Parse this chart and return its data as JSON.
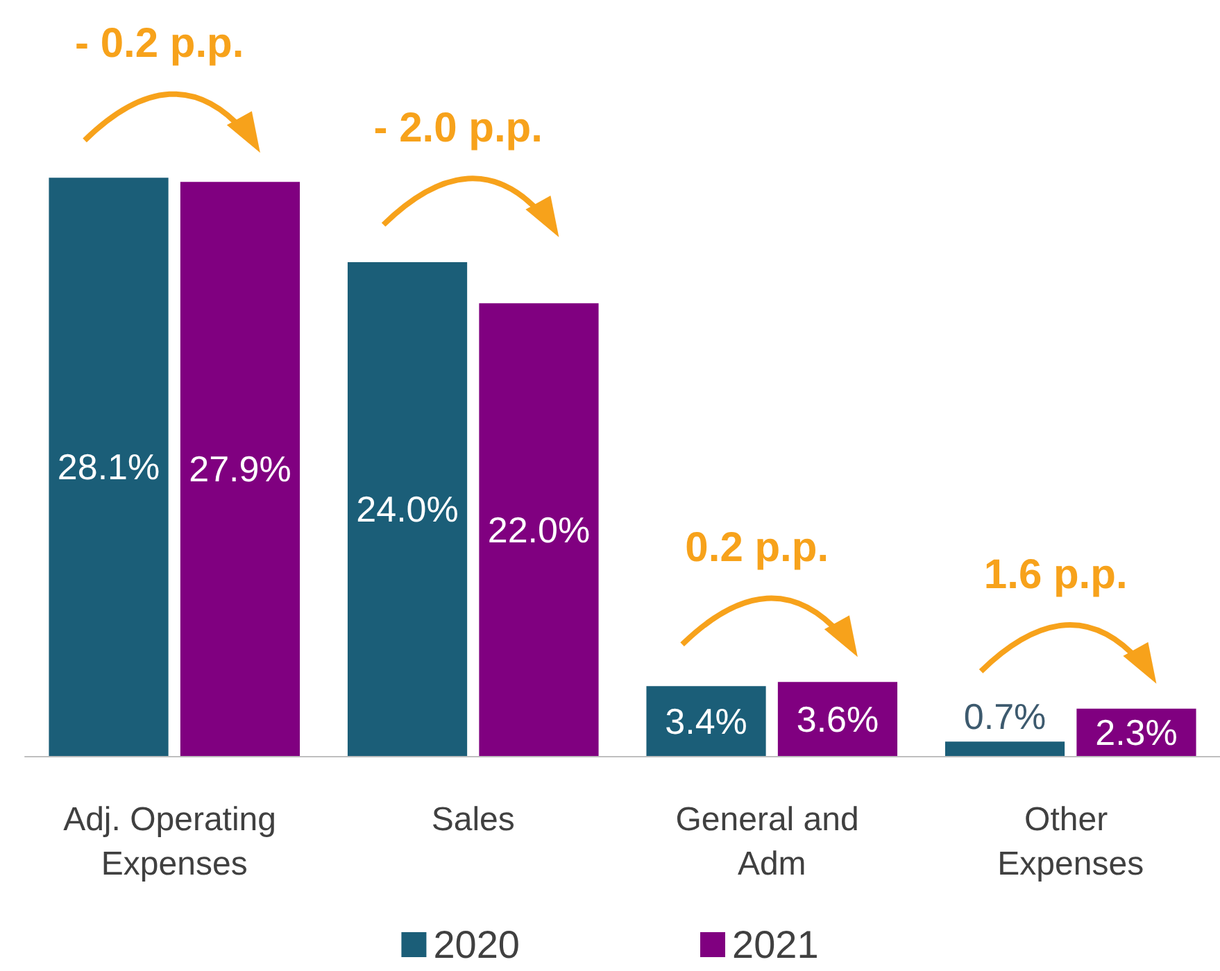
{
  "chart_data": {
    "type": "bar",
    "categories": [
      "Adj. Operating Expenses",
      "Sales",
      "General and Adm",
      "Other Expenses"
    ],
    "series": [
      {
        "name": "2020",
        "color": "#1b5e78",
        "values": [
          28.1,
          24.0,
          3.4,
          0.7
        ],
        "value_labels": [
          "28.1%",
          "24.0%",
          "3.4%",
          "0.7%"
        ]
      },
      {
        "name": "2021",
        "color": "#800080",
        "values": [
          27.9,
          22.0,
          3.6,
          2.3
        ],
        "value_labels": [
          "27.9%",
          "22.0%",
          "3.6%",
          "2.3%"
        ]
      }
    ],
    "annotations": [
      "- 0.2 p.p.",
      "- 2.0 p.p.",
      "0.2 p.p.",
      "1.6 p.p."
    ],
    "legend": "bottom"
  }
}
